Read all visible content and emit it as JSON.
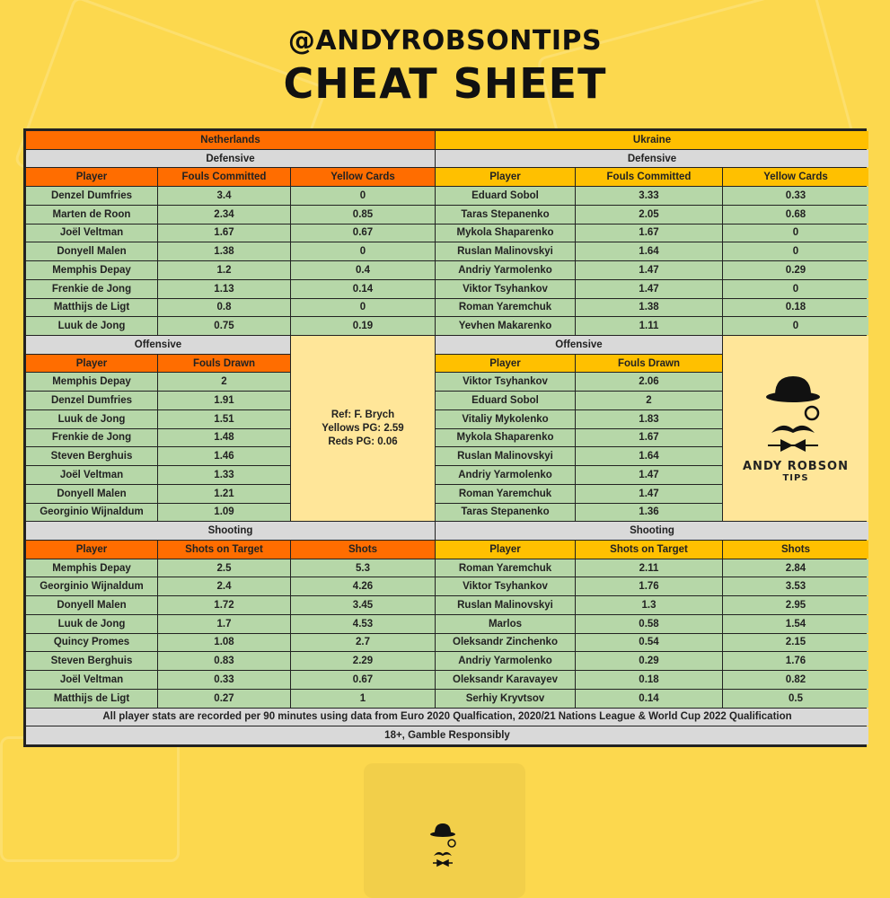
{
  "header": {
    "handle": "@ANDYROBSONTIPS",
    "title": "CHEAT SHEET"
  },
  "colors": {
    "netherlands": "#ff6d00",
    "ukraine": "#ffc000",
    "section": "#d9d9d9",
    "data": "#b6d7a8",
    "info": "#ffe699",
    "background": "#fcd84e"
  },
  "netherlands": {
    "team": "Netherlands",
    "defensive": {
      "title": "Defensive",
      "headers": [
        "Player",
        "Fouls Committed",
        "Yellow Cards"
      ],
      "rows": [
        [
          "Denzel Dumfries",
          "3.4",
          "0"
        ],
        [
          "Marten de Roon",
          "2.34",
          "0.85"
        ],
        [
          "Joël Veltman",
          "1.67",
          "0.67"
        ],
        [
          "Donyell Malen",
          "1.38",
          "0"
        ],
        [
          "Memphis Depay",
          "1.2",
          "0.4"
        ],
        [
          "Frenkie de Jong",
          "1.13",
          "0.14"
        ],
        [
          "Matthijs de Ligt",
          "0.8",
          "0"
        ],
        [
          "Luuk de Jong",
          "0.75",
          "0.19"
        ]
      ]
    },
    "offensive": {
      "title": "Offensive",
      "headers": [
        "Player",
        "Fouls Drawn"
      ],
      "rows": [
        [
          "Memphis Depay",
          "2"
        ],
        [
          "Denzel Dumfries",
          "1.91"
        ],
        [
          "Luuk de Jong",
          "1.51"
        ],
        [
          "Frenkie de Jong",
          "1.48"
        ],
        [
          "Steven Berghuis",
          "1.46"
        ],
        [
          "Joël Veltman",
          "1.33"
        ],
        [
          "Donyell Malen",
          "1.21"
        ],
        [
          "Georginio Wijnaldum",
          "1.09"
        ]
      ]
    },
    "shooting": {
      "title": "Shooting",
      "headers": [
        "Player",
        "Shots on Target",
        "Shots"
      ],
      "rows": [
        [
          "Memphis Depay",
          "2.5",
          "5.3"
        ],
        [
          "Georginio Wijnaldum",
          "2.4",
          "4.26"
        ],
        [
          "Donyell Malen",
          "1.72",
          "3.45"
        ],
        [
          "Luuk de Jong",
          "1.7",
          "4.53"
        ],
        [
          "Quincy Promes",
          "1.08",
          "2.7"
        ],
        [
          "Steven Berghuis",
          "0.83",
          "2.29"
        ],
        [
          "Joël Veltman",
          "0.33",
          "0.67"
        ],
        [
          "Matthijs de Ligt",
          "0.27",
          "1"
        ]
      ]
    }
  },
  "ukraine": {
    "team": "Ukraine",
    "defensive": {
      "title": "Defensive",
      "headers": [
        "Player",
        "Fouls Committed",
        "Yellow Cards"
      ],
      "rows": [
        [
          "Eduard Sobol",
          "3.33",
          "0.33"
        ],
        [
          "Taras Stepanenko",
          "2.05",
          "0.68"
        ],
        [
          "Mykola Shaparenko",
          "1.67",
          "0"
        ],
        [
          "Ruslan Malinovskyi",
          "1.64",
          "0"
        ],
        [
          "Andriy Yarmolenko",
          "1.47",
          "0.29"
        ],
        [
          "Viktor Tsyhankov",
          "1.47",
          "0"
        ],
        [
          "Roman Yaremchuk",
          "1.38",
          "0.18"
        ],
        [
          "Yevhen Makarenko",
          "1.11",
          "0"
        ]
      ]
    },
    "offensive": {
      "title": "Offensive",
      "headers": [
        "Player",
        "Fouls Drawn"
      ],
      "rows": [
        [
          "Viktor Tsyhankov",
          "2.06"
        ],
        [
          "Eduard Sobol",
          "2"
        ],
        [
          "Vitaliy Mykolenko",
          "1.83"
        ],
        [
          "Mykola Shaparenko",
          "1.67"
        ],
        [
          "Ruslan Malinovskyi",
          "1.64"
        ],
        [
          "Andriy Yarmolenko",
          "1.47"
        ],
        [
          "Roman Yaremchuk",
          "1.47"
        ],
        [
          "Taras Stepanenko",
          "1.36"
        ]
      ]
    },
    "shooting": {
      "title": "Shooting",
      "headers": [
        "Player",
        "Shots on Target",
        "Shots"
      ],
      "rows": [
        [
          "Roman Yaremchuk",
          "2.11",
          "2.84"
        ],
        [
          "Viktor Tsyhankov",
          "1.76",
          "3.53"
        ],
        [
          "Ruslan Malinovskyi",
          "1.3",
          "2.95"
        ],
        [
          "Marlos",
          "0.58",
          "1.54"
        ],
        [
          "Oleksandr Zinchenko",
          "0.54",
          "2.15"
        ],
        [
          "Andriy Yarmolenko",
          "0.29",
          "1.76"
        ],
        [
          "Oleksandr Karavayev",
          "0.18",
          "0.82"
        ],
        [
          "Serhiy Kryvtsov",
          "0.14",
          "0.5"
        ]
      ]
    }
  },
  "referee": {
    "name": "Ref: F. Brych",
    "yellows": "Yellows PG: 2.59",
    "reds": "Reds PG: 0.06"
  },
  "logo": {
    "line1": "ANDY ROBSON",
    "line2": "TIPS",
    "icon": "bowler-hat-monocle-moustache-bowtie-icon"
  },
  "footer": {
    "note": "All player stats are recorded per 90 minutes using data from Euro 2020 Qualfication, 2020/21 Nations League & World Cup 2022 Qualification",
    "gamble": "18+, Gamble Responsibly"
  }
}
